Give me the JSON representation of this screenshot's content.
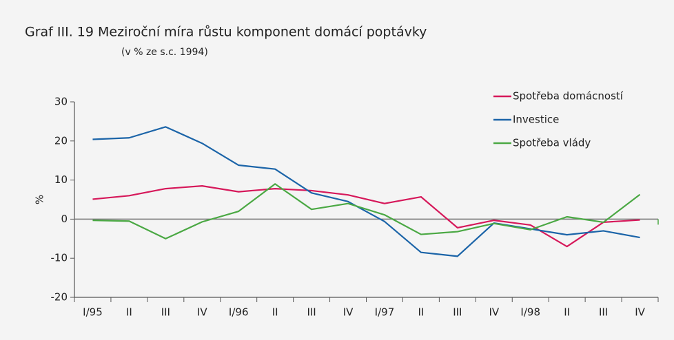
{
  "chart_data": {
    "type": "line",
    "title": "Graf III. 19  Meziroční míra růstu komponent domácí poptávky",
    "subtitle": "(v % ze s.c. 1994)",
    "y_label": "%",
    "categories": [
      "I/95",
      "II",
      "III",
      "IV",
      "I/96",
      "II",
      "III",
      "IV",
      "I/97",
      "II",
      "III",
      "IV",
      "I/98",
      "II",
      "III",
      "IV"
    ],
    "series": [
      {
        "name": "Spotřeba domácností",
        "color": "#d6185a",
        "values": [
          5.1,
          6.0,
          7.8,
          8.5,
          7.0,
          7.8,
          7.3,
          6.2,
          4.0,
          5.7,
          -2.2,
          -0.3,
          -1.5,
          -7.0,
          -0.8,
          -0.2
        ]
      },
      {
        "name": "Investice",
        "color": "#1b64a8",
        "values": [
          20.4,
          20.8,
          23.6,
          19.4,
          13.8,
          12.8,
          6.7,
          4.5,
          -0.6,
          -8.5,
          -9.5,
          -1.0,
          -2.5,
          -4.0,
          -3.0,
          -4.7
        ]
      },
      {
        "name": "Spotřeba vlády",
        "color": "#4aa843",
        "values": [
          -0.3,
          -0.5,
          -5.0,
          -0.7,
          2.0,
          9.0,
          2.5,
          4.0,
          1.1,
          -3.9,
          -3.2,
          -1.1,
          -2.7,
          0.6,
          -0.8,
          6.3
        ]
      }
    ],
    "ylim": [
      -20,
      30
    ],
    "yticks": [
      -20,
      -10,
      0,
      10,
      20,
      30
    ],
    "legend": "upper right",
    "grid": false
  }
}
